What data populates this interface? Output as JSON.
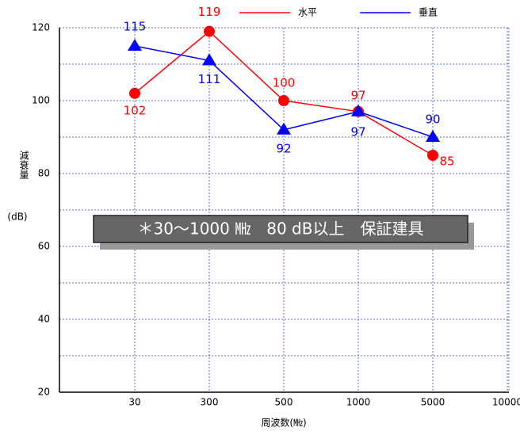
{
  "chart_data": {
    "type": "line",
    "y_label": "減衰量",
    "y_unit": "(dB)",
    "x_label": "周波数(㎒)",
    "annotation": "＊30～1000 ㎒　80 dB以上　保証建具",
    "categories": [
      "30",
      "300",
      "500",
      "1000",
      "5000",
      "10000"
    ],
    "series": [
      {
        "name": "水平",
        "color": "#ff0000",
        "marker": "circle",
        "values": [
          102,
          119,
          100,
          97,
          85,
          null
        ]
      },
      {
        "name": "垂直",
        "color": "#0000ff",
        "marker": "triangle",
        "values": [
          115,
          111,
          92,
          97,
          90,
          null
        ]
      }
    ],
    "ylim": [
      20,
      120
    ],
    "yticks": [
      20,
      40,
      60,
      80,
      100,
      120
    ],
    "minor_yticks": [
      30,
      50,
      70,
      90,
      110
    ],
    "grid": true
  }
}
